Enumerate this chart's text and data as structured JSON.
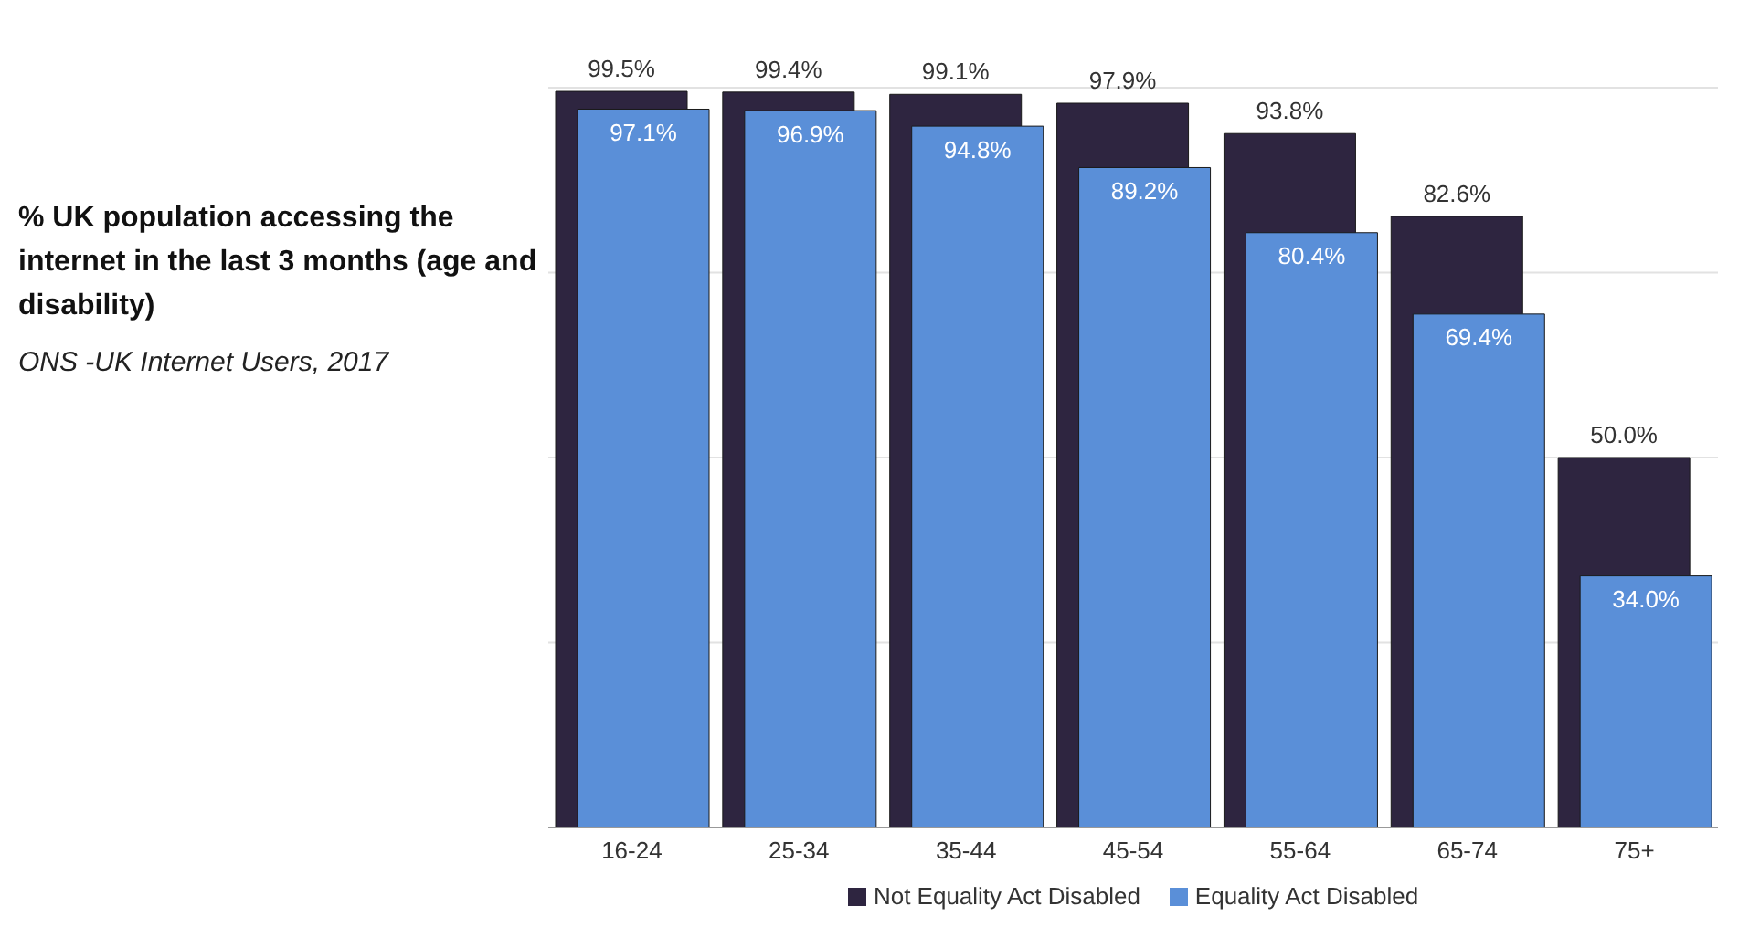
{
  "chart_data": {
    "type": "bar",
    "title": "% UK population accessing the internet in the last 3 months (age and disability)",
    "subtitle": "ONS -UK Internet Users, 2017",
    "categories": [
      "16-24",
      "25-34",
      "35-44",
      "45-54",
      "55-64",
      "65-74",
      "75+"
    ],
    "series": [
      {
        "name": "Not Equality Act Disabled",
        "color": "#2e2540",
        "values": [
          99.5,
          99.4,
          99.1,
          97.9,
          93.8,
          82.6,
          50.0
        ],
        "value_labels": [
          "99.5%",
          "99.4%",
          "99.1%",
          "97.9%",
          "93.8%",
          "82.6%",
          "50.0%"
        ]
      },
      {
        "name": "Equality Act Disabled",
        "color": "#5a8fd8",
        "values": [
          97.1,
          96.9,
          94.8,
          89.2,
          80.4,
          69.4,
          34.0
        ],
        "value_labels": [
          "97.1%",
          "96.9%",
          "94.8%",
          "89.2%",
          "80.4%",
          "69.4%",
          "34.0%"
        ]
      }
    ],
    "ylim": [
      0,
      100
    ],
    "yticks": [
      0,
      25,
      50,
      75,
      100
    ],
    "grid": "y",
    "tick_labels": "x",
    "legend": "bottom"
  }
}
